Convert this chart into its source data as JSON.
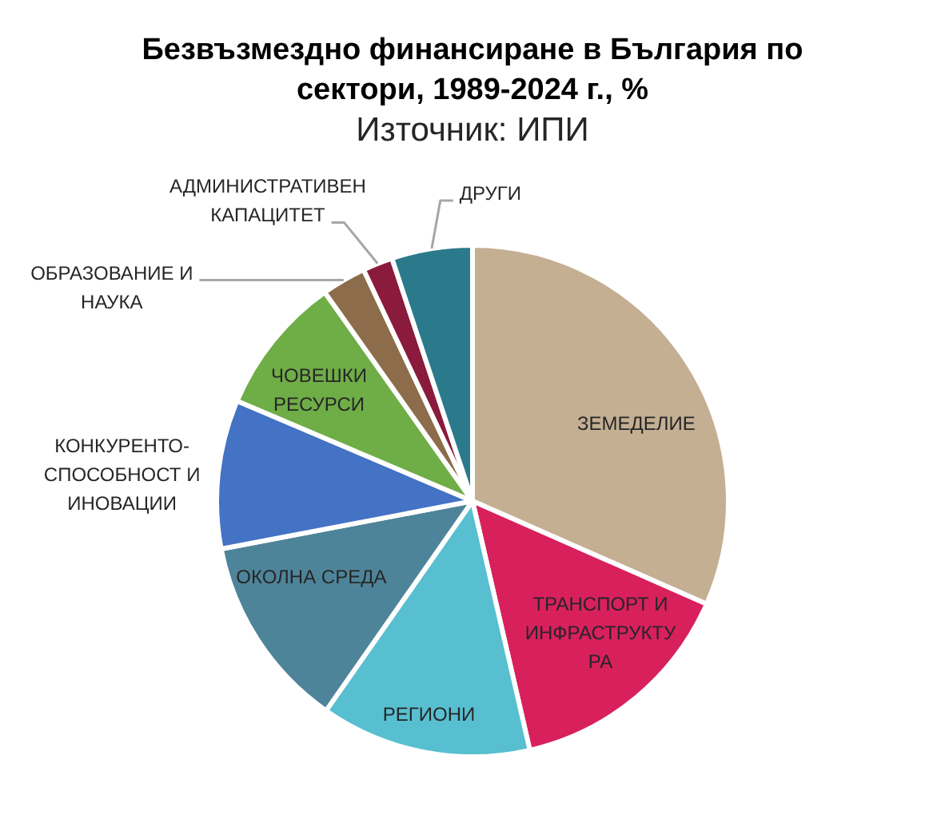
{
  "chart_data": {
    "type": "pie",
    "title": "Безвъзмездно финансиране в България по сектори, 1989-2024 г., %",
    "annotations": [
      "Източник: ИПИ"
    ],
    "categories": [
      "ЗЕМЕДЕЛИЕ",
      "ТРАНСПОРТ И ИНФРАСТРУКТУРА",
      "РЕГИОНИ",
      "ОКОЛНА СРЕДА",
      "КОНКУРЕНТО-СПОСОБНОСТ И ИНОВАЦИИ",
      "ЧОВЕШКИ РЕСУРСИ",
      "ОБРАЗОВАНИЕ И НАУКА",
      "АДМИНИСТРАТИВЕН КАПАЦИТЕТ",
      "ДРУГИ"
    ],
    "values": [
      31.6,
      14.8,
      13.3,
      12.3,
      9.4,
      8.8,
      2.8,
      1.9,
      5.1
    ],
    "colors": [
      "#c4af93",
      "#d8205d",
      "#57bfcf",
      "#4e8499",
      "#4472c4",
      "#6fad47",
      "#8c6c4a",
      "#8a1b3d",
      "#2b7a8b"
    ]
  }
}
